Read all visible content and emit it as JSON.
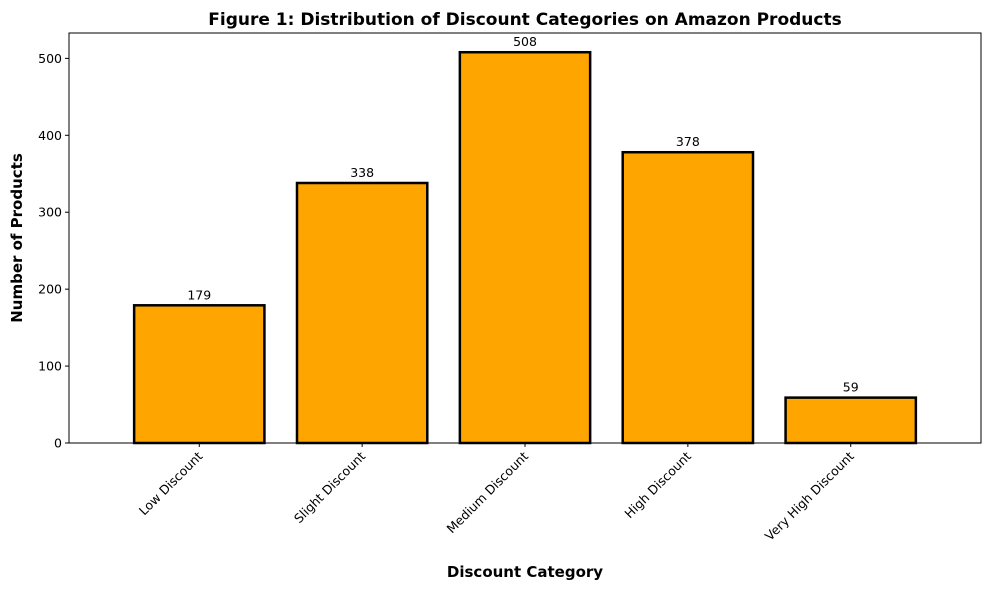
{
  "chart_data": {
    "type": "bar",
    "title": "Figure 1: Distribution of Discount Categories on Amazon Products",
    "xlabel": "Discount Category",
    "ylabel": "Number of Products",
    "categories": [
      "Low Discount",
      "Slight Discount",
      "Medium Discount",
      "High Discount",
      "Very High Discount"
    ],
    "values": [
      179,
      338,
      508,
      378,
      59
    ],
    "ylim": [
      0,
      533
    ],
    "yticks": [
      0,
      100,
      200,
      300,
      400,
      500
    ],
    "grid": false,
    "bar_color": "#FFA500",
    "bar_edge_color": "#000000",
    "data_labels": true
  }
}
